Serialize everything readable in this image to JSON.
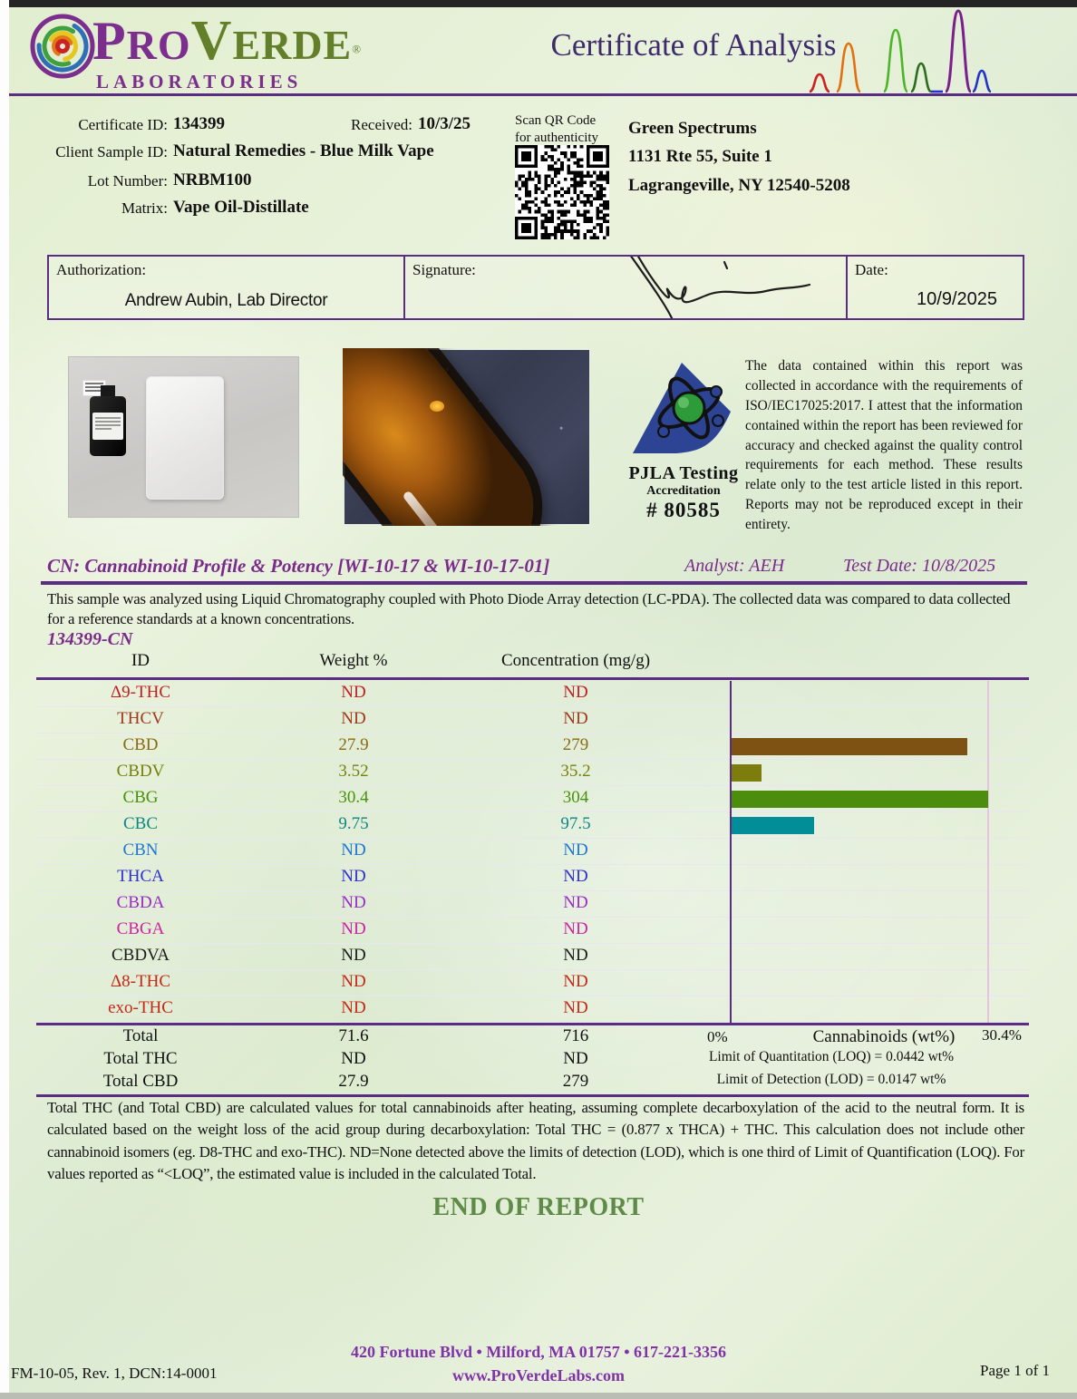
{
  "header": {
    "brand_pro": "Pro",
    "brand_verde": "Verde",
    "brand_sub": "LABORATORIES",
    "title": "Certificate of Analysis"
  },
  "meta": {
    "certificate_id_label": "Certificate ID:",
    "certificate_id": "134399",
    "received_label": "Received:",
    "received": "10/3/25",
    "client_sample_id_label": "Client Sample ID:",
    "client_sample_id": "Natural Remedies - Blue Milk Vape",
    "lot_number_label": "Lot Number:",
    "lot_number": "NRBM100",
    "matrix_label": "Matrix:",
    "matrix": "Vape Oil-Distillate",
    "qr_caption": "Scan QR Code for authenticity"
  },
  "client": {
    "name": "Green Spectrums",
    "address1": "1131 Rte 55, Suite 1",
    "address2": "Lagrangeville, NY  12540-5208"
  },
  "authorization": {
    "label": "Authorization:",
    "name": "Andrew Aubin, Lab Director",
    "signature_label": "Signature:",
    "date_label": "Date:",
    "date": "10/9/2025"
  },
  "accreditation": {
    "line1": "PJLA Testing",
    "line2": "Accreditation",
    "line3": "# 80585",
    "statement": "The data contained within this report was collected in accordance with the requirements of ISO/IEC17025:2017.   I attest that the information contained within the report has been reviewed for accuracy and checked against the quality control requirements for each method.  These results relate only to the test article listed in this report.  Reports may not be reproduced except in their entirety."
  },
  "section": {
    "title": "CN: Cannabinoid Profile & Potency [WI-10-17 & WI-10-17-01]",
    "analyst": "Analyst: AEH",
    "test_date": "Test Date: 10/8/2025",
    "description": "This sample was analyzed using Liquid Chromatography coupled with Photo Diode Array detection (LC-PDA).  The collected data was compared to data collected for a reference standards at a known concentrations.",
    "sample_code": "134399-CN"
  },
  "chart_data": {
    "type": "bar",
    "title": "Cannabinoids (wt%)",
    "columns": [
      "ID",
      "Weight %",
      "Concentration (mg/g)"
    ],
    "rows": [
      {
        "id": "Δ9-THC",
        "weight": "ND",
        "conc": "ND",
        "value": 0,
        "color": "#c01f22"
      },
      {
        "id": "THCV",
        "weight": "ND",
        "conc": "ND",
        "value": 0,
        "color": "#9e3a1c"
      },
      {
        "id": "CBD",
        "weight": "27.9",
        "conc": "279",
        "value": 27.9,
        "color": "#8a6a12",
        "bar_color": "#7d5213"
      },
      {
        "id": "CBDV",
        "weight": "3.52",
        "conc": "35.2",
        "value": 3.52,
        "color": "#75800a",
        "bar_color": "#7c7d0d"
      },
      {
        "id": "CBG",
        "weight": "30.4",
        "conc": "304",
        "value": 30.4,
        "color": "#48910c",
        "bar_color": "#4d8d0e"
      },
      {
        "id": "CBC",
        "weight": "9.75",
        "conc": "97.5",
        "value": 9.75,
        "color": "#0e8784",
        "bar_color": "#028e99"
      },
      {
        "id": "CBN",
        "weight": "ND",
        "conc": "ND",
        "value": 0,
        "color": "#1d77d4"
      },
      {
        "id": "THCA",
        "weight": "ND",
        "conc": "ND",
        "value": 0,
        "color": "#3030cf"
      },
      {
        "id": "CBDA",
        "weight": "ND",
        "conc": "ND",
        "value": 0,
        "color": "#9a2bc9"
      },
      {
        "id": "CBGA",
        "weight": "ND",
        "conc": "ND",
        "value": 0,
        "color": "#cd23a0"
      },
      {
        "id": "CBDVA",
        "weight": "ND",
        "conc": "ND",
        "value": 0,
        "color": "#1c1c1c"
      },
      {
        "id": "Δ8-THC",
        "weight": "ND",
        "conc": "ND",
        "value": 0,
        "color": "#c62817"
      },
      {
        "id": "exo-THC",
        "weight": "ND",
        "conc": "ND",
        "value": 0,
        "color": "#c62817"
      }
    ],
    "totals": [
      {
        "id": "Total",
        "weight": "71.6",
        "conc": "716"
      },
      {
        "id": "Total THC",
        "weight": "ND",
        "conc": "ND"
      },
      {
        "id": "Total CBD",
        "weight": "27.9",
        "conc": "279"
      }
    ],
    "axis": {
      "min_label": "0%",
      "max_label": "30.4%",
      "max_value": 30.4
    },
    "loq": "Limit of Quantitation (LOQ) = 0.0442 wt%",
    "lod": "Limit of Detection (LOD) = 0.0147 wt%",
    "legend_position": "below-right",
    "grid": "row-dividers"
  },
  "footnote": "Total THC (and Total CBD) are calculated values for total cannabinoids after heating, assuming complete decarboxylation of the acid to the neutral form.  It is calculated based on the weight loss of the acid group during decarboxylation:  Total THC = (0.877 x THCA) + THC.  This calculation does not include other cannabinoid isomers (eg. D8-THC and exo-THC). ND=None detected above the limits of detection (LOD), which is one third of Limit of Quantification (LOQ).  For values reported as “<LOQ”, the estimated value is included in the calculated Total.",
  "end_of_report": "END OF REPORT",
  "footer": {
    "left": "FM-10-05, Rev. 1, DCN:14-0001",
    "center_line1": "420 Fortune Blvd • Milford, MA 01757 • 617-221-3356",
    "center_line2": "www.ProVerdeLabs.com",
    "right": "Page 1 of 1"
  }
}
